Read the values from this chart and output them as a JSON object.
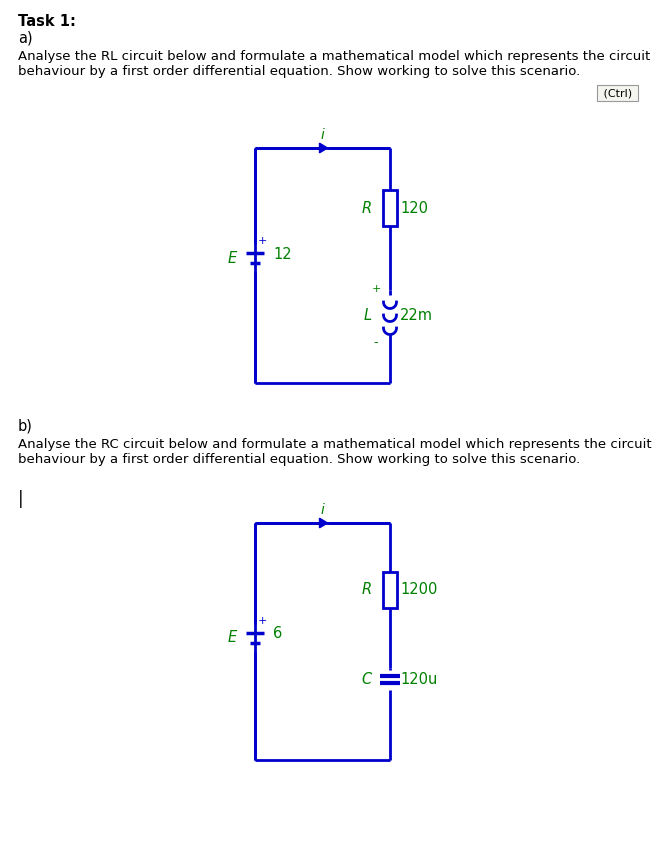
{
  "bg_color": "#ffffff",
  "text_color": "#000000",
  "circuit_color": "#0000cc",
  "component_color": "#008000",
  "title_bold": "Task 1:",
  "subtitle_a": "a)",
  "text_a": "Analyse the RL circuit below and formulate a mathematical model which represents the circuit\nbehaviour by a first order differential equation. Show working to solve this scenario.",
  "subtitle_b": "b)",
  "text_b": "Analyse the RC circuit below and formulate a mathematical model which represents the circuit\nbehaviour by a first order differential equation. Show working to solve this scenario.",
  "ctrl_label": " (Ctrl) "
}
